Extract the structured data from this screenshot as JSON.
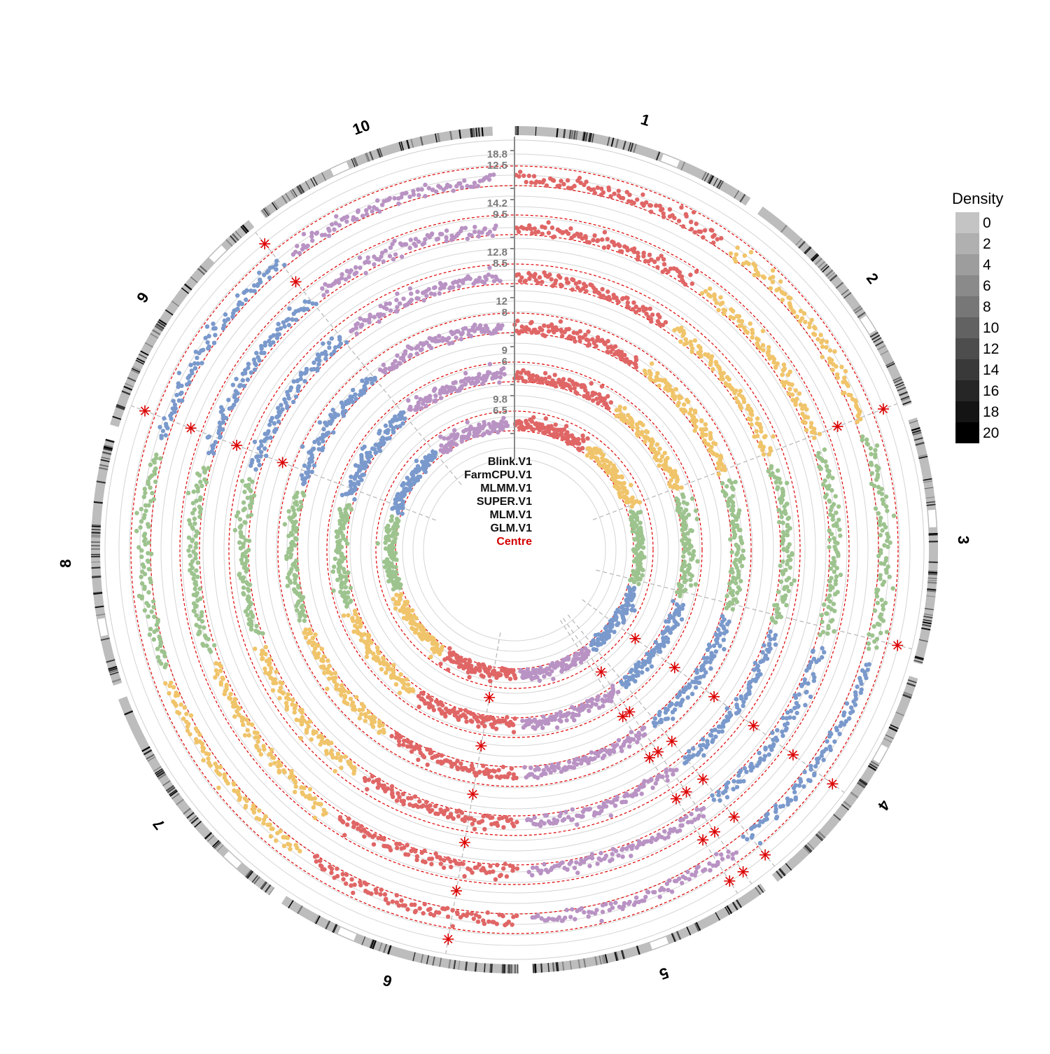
{
  "chart_data": {
    "type": "scatter",
    "chromosomes": [
      "1",
      "2",
      "3",
      "4",
      "5",
      "6",
      "7",
      "8",
      "9",
      "10"
    ],
    "chromosome_colors": [
      "#e06666",
      "#f0c46a",
      "#9dc38e",
      "#7a99cc",
      "#b993c4",
      "#e06666",
      "#f0c46a",
      "#9dc38e",
      "#7a99cc",
      "#b993c4"
    ],
    "tracks": [
      {
        "name": "Blink.V1",
        "ticks": [
          "18.8",
          "12.5"
        ]
      },
      {
        "name": "FarmCPU.V1",
        "ticks": [
          "14.2",
          "9.5"
        ]
      },
      {
        "name": "MLMM.V1",
        "ticks": [
          "12.8",
          "8.5"
        ]
      },
      {
        "name": "SUPER.V1",
        "ticks": [
          "12",
          "8"
        ]
      },
      {
        "name": "MLM.V1",
        "ticks": [
          "9",
          "6"
        ]
      },
      {
        "name": "GLM.V1",
        "ticks": [
          "9.8",
          "6.5"
        ]
      }
    ],
    "centre_label": "Centre",
    "threshold_line": {
      "style": "dashed",
      "color": "#dd0000"
    },
    "significant_marker": {
      "shape": "asterisk",
      "color": "#dd0000"
    },
    "significant_markers": [
      {
        "track": "Blink.V1",
        "chromosome": "2",
        "position": 0.98
      },
      {
        "track": "Blink.V1",
        "chromosome": "3",
        "position": 0.95
      },
      {
        "track": "Blink.V1",
        "chromosome": "4",
        "position": 0.55
      },
      {
        "track": "Blink.V1",
        "chromosome": "4",
        "position": 0.97
      },
      {
        "track": "Blink.V1",
        "chromosome": "5",
        "position": 0.1
      },
      {
        "track": "Blink.V1",
        "chromosome": "5",
        "position": 0.03
      },
      {
        "track": "Blink.V1",
        "chromosome": "6",
        "position": 0.3
      },
      {
        "track": "Blink.V1",
        "chromosome": "9",
        "position": 0.1
      },
      {
        "track": "Blink.V1",
        "chromosome": "9",
        "position": 0.99
      },
      {
        "track": "FarmCPU.V1",
        "chromosome": "2",
        "position": 0.98
      },
      {
        "track": "FarmCPU.V1",
        "chromosome": "4",
        "position": 0.55
      },
      {
        "track": "FarmCPU.V1",
        "chromosome": "4",
        "position": 0.97
      },
      {
        "track": "FarmCPU.V1",
        "chromosome": "5",
        "position": 0.1
      },
      {
        "track": "FarmCPU.V1",
        "chromosome": "5",
        "position": 0.03
      },
      {
        "track": "FarmCPU.V1",
        "chromosome": "6",
        "position": 0.3
      },
      {
        "track": "FarmCPU.V1",
        "chromosome": "9",
        "position": 0.1
      },
      {
        "track": "FarmCPU.V1",
        "chromosome": "9",
        "position": 0.99
      },
      {
        "track": "MLMM.V1",
        "chromosome": "4",
        "position": 0.55
      },
      {
        "track": "MLMM.V1",
        "chromosome": "4",
        "position": 0.97
      },
      {
        "track": "MLMM.V1",
        "chromosome": "5",
        "position": 0.1
      },
      {
        "track": "MLMM.V1",
        "chromosome": "5",
        "position": 0.03
      },
      {
        "track": "MLMM.V1",
        "chromosome": "6",
        "position": 0.3
      },
      {
        "track": "MLMM.V1",
        "chromosome": "9",
        "position": 0.1
      },
      {
        "track": "SUPER.V1",
        "chromosome": "4",
        "position": 0.55
      },
      {
        "track": "SUPER.V1",
        "chromosome": "4",
        "position": 0.97
      },
      {
        "track": "SUPER.V1",
        "chromosome": "5",
        "position": 0.1
      },
      {
        "track": "SUPER.V1",
        "chromosome": "5",
        "position": 0.03
      },
      {
        "track": "SUPER.V1",
        "chromosome": "6",
        "position": 0.3
      },
      {
        "track": "SUPER.V1",
        "chromosome": "9",
        "position": 0.1
      },
      {
        "track": "MLM.V1",
        "chromosome": "4",
        "position": 0.55
      },
      {
        "track": "MLM.V1",
        "chromosome": "5",
        "position": 0.1
      },
      {
        "track": "MLM.V1",
        "chromosome": "5",
        "position": 0.03
      },
      {
        "track": "MLM.V1",
        "chromosome": "6",
        "position": 0.3
      },
      {
        "track": "GLM.V1",
        "chromosome": "4",
        "position": 0.55
      },
      {
        "track": "GLM.V1",
        "chromosome": "5",
        "position": 0.03
      },
      {
        "track": "GLM.V1",
        "chromosome": "6",
        "position": 0.3
      }
    ],
    "density_legend": {
      "title": "Density",
      "values": [
        "0",
        "2",
        "4",
        "6",
        "8",
        "10",
        "12",
        "14",
        "16",
        "18",
        "20"
      ],
      "colors": [
        "#c4c4c4",
        "#b0b0b0",
        "#9d9d9d",
        "#8a8a8a",
        "#777777",
        "#626262",
        "#4d4d4d",
        "#393939",
        "#262626",
        "#141414",
        "#000000"
      ]
    },
    "legend_position": "right"
  }
}
